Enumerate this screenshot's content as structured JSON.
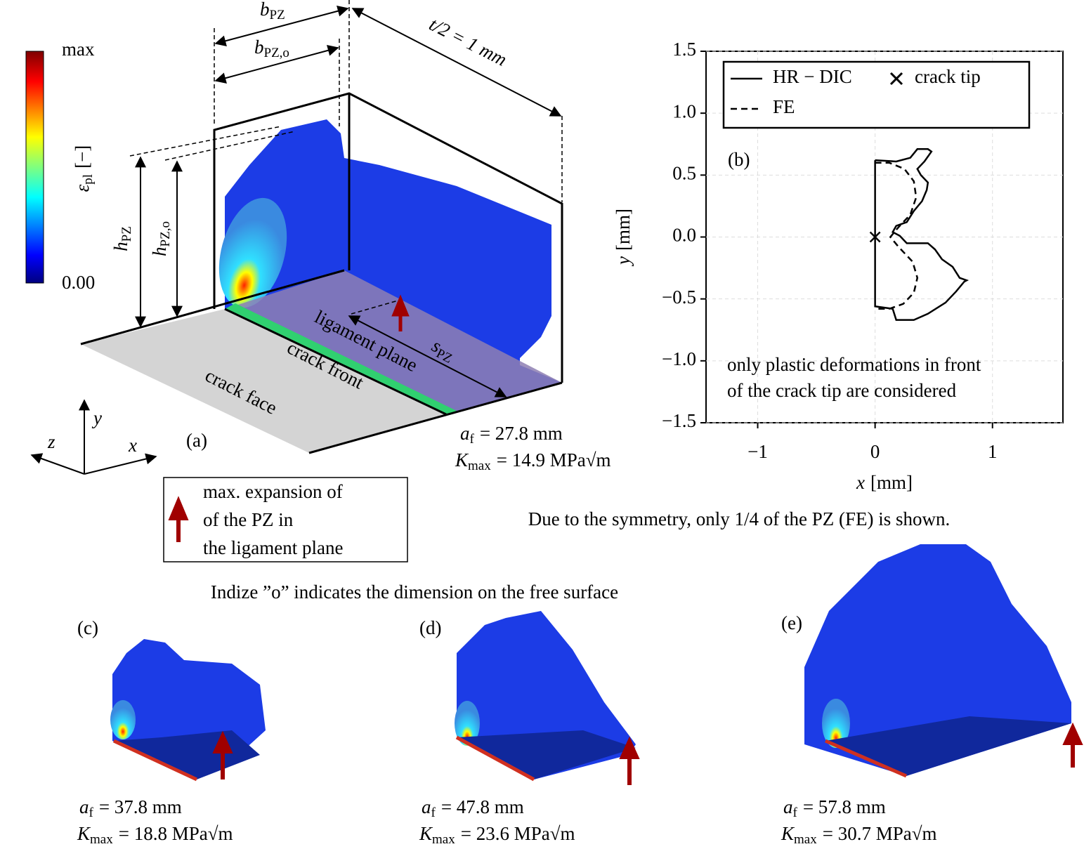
{
  "chart_data": {
    "type": "line",
    "panel_label": "(b)",
    "xlabel": {
      "sym": "x",
      "text": "[mm]"
    },
    "ylabel": {
      "sym": "y",
      "text": "[mm]"
    },
    "xlim": [
      -1.44,
      1.6
    ],
    "ylim": [
      -1.5,
      1.5
    ],
    "xticks": [
      {
        "value": -1,
        "label": "−1"
      },
      0,
      1
    ],
    "yticks": [
      {
        "value": -1.5,
        "label": "−1.5"
      },
      {
        "value": -1,
        "label": "−1.0"
      },
      {
        "value": -0.5,
        "label": "−0.5"
      },
      {
        "value": 0,
        "label": "0.0"
      },
      0.5,
      {
        "value": 1,
        "label": "1.0"
      },
      1.5
    ],
    "grid": true,
    "legend": "upper left",
    "series": [
      {
        "name": "HR − DIC",
        "color": "#000000",
        "dash": "solid",
        "x": [
          0,
          0,
          0.15,
          0.18,
          0.33,
          0.45,
          0.6,
          0.69,
          0.76,
          0.78,
          0.72,
          0.66,
          0.57,
          0.51,
          0.45,
          0.39,
          0.27,
          0.21,
          0.15,
          0.18,
          0.27,
          0.33,
          0.4,
          0.44,
          0.45,
          0.39,
          0.36,
          0.42,
          0.48,
          0.45,
          0.36,
          0.3,
          0.18,
          0
        ],
        "y": [
          0.62,
          -0.56,
          -0.58,
          -0.67,
          -0.67,
          -0.62,
          -0.53,
          -0.44,
          -0.36,
          -0.35,
          -0.33,
          -0.24,
          -0.18,
          -0.1,
          -0.05,
          -0.05,
          -0.05,
          0.01,
          0.04,
          0.09,
          0.12,
          0.21,
          0.29,
          0.38,
          0.44,
          0.5,
          0.55,
          0.61,
          0.69,
          0.71,
          0.71,
          0.64,
          0.61,
          0.62
        ]
      },
      {
        "name": "crack tip",
        "color": "#000000",
        "marker": "x",
        "x": [
          0
        ],
        "y": [
          0
        ]
      },
      {
        "name": "FE",
        "color": "#000000",
        "dash": "dashed",
        "x": [
          0,
          0.12,
          0.25,
          0.33,
          0.35,
          0.3,
          0.2,
          0.13,
          0.2,
          0.32,
          0.36,
          0.33,
          0.24,
          0.12,
          0
        ],
        "y": [
          0.6,
          0.6,
          0.55,
          0.45,
          0.32,
          0.18,
          0.08,
          0,
          -0.08,
          -0.2,
          -0.33,
          -0.45,
          -0.54,
          -0.58,
          -0.58
        ]
      }
    ],
    "annotation": [
      "only plastic deformations in front",
      "of the crack tip are considered"
    ]
  },
  "panel_a": {
    "label": "(a)",
    "colorbar": {
      "max": "max",
      "min": "0.00",
      "label": {
        "sym": "ε",
        "sub": "pl",
        "text": "[−]"
      }
    },
    "b_pz": {
      "sym": "b",
      "sub": "PZ"
    },
    "b_pz_o": {
      "sym": "b",
      "sub": "PZ,o"
    },
    "thickness": "t/2 = 1 mm",
    "h_pz": {
      "sym": "h",
      "sub": "PZ"
    },
    "h_pz_o": {
      "sym": "h",
      "sub": "PZ,o"
    },
    "s_pz": {
      "sym": "s",
      "sub": "PZ"
    },
    "ligament": "ligament plane",
    "front": "crack front",
    "face": "crack face",
    "axes": {
      "x": "x",
      "y": "y",
      "z": "z"
    },
    "af": {
      "sym": "a",
      "sub": "f",
      "text": "= 27.8 mm"
    },
    "kmax": {
      "sym": "K",
      "sub": "max",
      "text": "= 14.9 MPa√m"
    }
  },
  "legend_box": [
    "max. expansion of",
    "of the PZ in",
    "the ligament plane"
  ],
  "notes": [
    "Due to the symmetry, only 1/4 of the PZ (FE) is shown.",
    "Indize ”o” indicates the dimension on the free surface"
  ],
  "panels": [
    {
      "label": "(c)",
      "af": {
        "sym": "a",
        "sub": "f",
        "text": "= 37.8 mm"
      },
      "kmax": {
        "sym": "K",
        "sub": "max",
        "text": "= 18.8 MPa√m"
      }
    },
    {
      "label": "(d)",
      "af": {
        "sym": "a",
        "sub": "f",
        "text": "= 47.8 mm"
      },
      "kmax": {
        "sym": "K",
        "sub": "max",
        "text": "= 23.6 MPa√m"
      }
    },
    {
      "label": "(e)",
      "af": {
        "sym": "a",
        "sub": "f",
        "text": "= 57.8 mm"
      },
      "kmax": {
        "sym": "K",
        "sub": "max",
        "text": "= 30.7 MPa√m"
      }
    }
  ]
}
